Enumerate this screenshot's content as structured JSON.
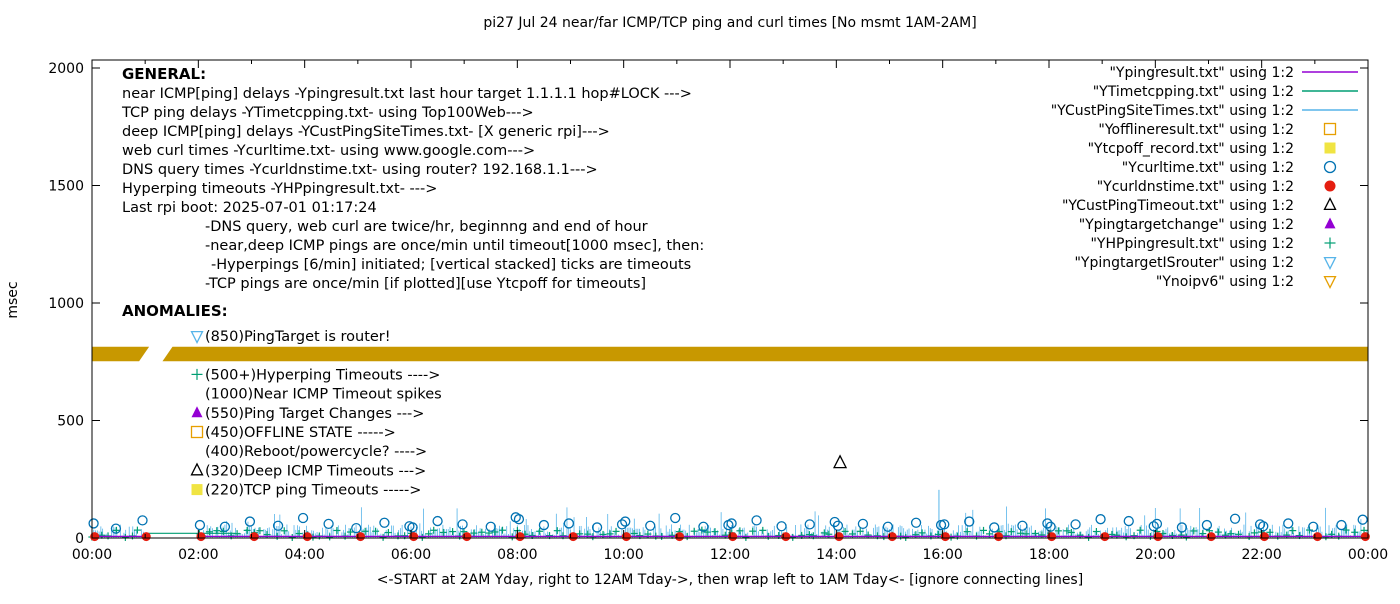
{
  "chart_data": {
    "type": "line",
    "title": "pi27 Jul 24  near/far ICMP/TCP ping and curl times [No msmt 1AM-2AM]",
    "ylabel": "msec",
    "xlabel": "<-START at 2AM Yday, right to 12AM Tday->, then wrap left to 1AM Tday<- [ignore connecting lines]",
    "ylim": [
      0,
      2000
    ],
    "xlim_hours": [
      0,
      24
    ],
    "y_ticks": [
      0,
      500,
      1000,
      1500,
      2000
    ],
    "x_ticks": [
      "00:00",
      "02:00",
      "04:00",
      "06:00",
      "08:00",
      "10:00",
      "12:00",
      "14:00",
      "16:00",
      "18:00",
      "20:00",
      "22:00",
      "00:00"
    ],
    "grid": false,
    "legend_position": "top-right-inside",
    "legend": [
      {
        "label": "\"Ypingresult.txt\" using 1:2",
        "marker": "line",
        "color": "#9400d3"
      },
      {
        "label": "\"YTimetcpping.txt\" using 1:2",
        "marker": "line",
        "color": "#009e73"
      },
      {
        "label": "\"YCustPingSiteTimes.txt\" using 1:2",
        "marker": "line",
        "color": "#56b4e9"
      },
      {
        "label": "\"Yofflineresult.txt\" using 1:2",
        "marker": "square-open",
        "color": "#e69f00"
      },
      {
        "label": "\"Ytcpoff_record.txt\" using 1:2",
        "marker": "square-filled",
        "color": "#f0e442"
      },
      {
        "label": "\"Ycurltime.txt\" using 1:2",
        "marker": "circle-open",
        "color": "#0072b2"
      },
      {
        "label": "\"Ycurldnstime.txt\" using 1:2",
        "marker": "circle-filled",
        "color": "#e51e10"
      },
      {
        "label": "\"YCustPingTimeout.txt\" using 1:2",
        "marker": "triangle-open",
        "color": "#000000"
      },
      {
        "label": "\"Ypingtargetchange\" using 1:2",
        "marker": "triangle-filled",
        "color": "#9400d3"
      },
      {
        "label": "\"YHPpingresult.txt\" using 1:2",
        "marker": "plus",
        "color": "#009e73"
      },
      {
        "label": "\"YpingtargetISrouter\" using 1:2",
        "marker": "triangle-down-open",
        "color": "#56b4e9"
      },
      {
        "label": "\"Ynoipv6\" using 1:2",
        "marker": "triangle-down-open",
        "color": "#e69f00"
      }
    ],
    "band": {
      "y_msec": 783,
      "height_msec": 62,
      "color": "#c89800",
      "gap_hours": [
        0.98,
        1.42
      ]
    },
    "series": [
      {
        "name": "deep-icmp-noise",
        "color": "#56b4e9",
        "style": "ticks",
        "seed": 11,
        "per_hour": 30,
        "ymin": 3,
        "ymax": 58,
        "spike_chance": 0.06,
        "spike_min": 60,
        "spike_max": 135,
        "gap_hours": [
          [
            1.0,
            2.0
          ]
        ],
        "extra_spikes": [
          [
            15.93,
            205
          ]
        ]
      },
      {
        "name": "hyperping-plus",
        "color": "#009e73",
        "style": "plus-points",
        "seed": 23,
        "per_hour": 7,
        "ymin": 2,
        "ymax": 34,
        "gap_hours": [
          [
            1.0,
            2.0
          ]
        ]
      },
      {
        "name": "near-icmp-line",
        "color": "#9400d3",
        "style": "flatline",
        "y": 7,
        "from": 0,
        "to": 24,
        "gap_hours": [
          [
            1.0,
            2.0
          ]
        ]
      },
      {
        "name": "tcp-bridge-line",
        "color": "#009e73",
        "style": "flatline",
        "y": 20,
        "from": 1.05,
        "to": 2.7,
        "gap_hours": []
      },
      {
        "name": "curl-times",
        "color": "#0072b2",
        "style": "circle-open-points",
        "points": [
          [
            0.03,
            62
          ],
          [
            0.45,
            40
          ],
          [
            0.95,
            75
          ],
          [
            2.03,
            55
          ],
          [
            2.5,
            48
          ],
          [
            2.97,
            70
          ],
          [
            3.5,
            52
          ],
          [
            3.97,
            85
          ],
          [
            4.45,
            60
          ],
          [
            4.97,
            42
          ],
          [
            5.5,
            65
          ],
          [
            5.97,
            50
          ],
          [
            6.03,
            45
          ],
          [
            6.5,
            72
          ],
          [
            6.97,
            58
          ],
          [
            7.5,
            48
          ],
          [
            7.97,
            88
          ],
          [
            8.03,
            80
          ],
          [
            8.5,
            55
          ],
          [
            8.97,
            62
          ],
          [
            9.5,
            45
          ],
          [
            9.97,
            58
          ],
          [
            10.03,
            70
          ],
          [
            10.5,
            52
          ],
          [
            10.97,
            85
          ],
          [
            11.5,
            48
          ],
          [
            11.97,
            55
          ],
          [
            12.03,
            62
          ],
          [
            12.5,
            75
          ],
          [
            12.97,
            50
          ],
          [
            13.5,
            58
          ],
          [
            13.97,
            68
          ],
          [
            14.03,
            52
          ],
          [
            14.5,
            60
          ],
          [
            14.97,
            48
          ],
          [
            15.5,
            65
          ],
          [
            15.97,
            55
          ],
          [
            16.03,
            58
          ],
          [
            16.5,
            70
          ],
          [
            16.97,
            45
          ],
          [
            17.5,
            52
          ],
          [
            17.97,
            62
          ],
          [
            18.03,
            48
          ],
          [
            18.5,
            58
          ],
          [
            18.97,
            80
          ],
          [
            19.5,
            72
          ],
          [
            19.97,
            50
          ],
          [
            20.03,
            60
          ],
          [
            20.5,
            45
          ],
          [
            20.97,
            55
          ],
          [
            21.5,
            82
          ],
          [
            21.97,
            58
          ],
          [
            22.03,
            50
          ],
          [
            22.5,
            62
          ],
          [
            22.97,
            48
          ],
          [
            23.5,
            55
          ],
          [
            23.9,
            78
          ]
        ]
      },
      {
        "name": "dns-times",
        "color": "#e51e10",
        "style": "circle-filled-points",
        "value": 6,
        "hours": [
          0.05,
          1.02,
          2.05,
          3.05,
          4.05,
          5.05,
          6.05,
          7.05,
          8.05,
          9.05,
          10.05,
          11.05,
          12.05,
          13.05,
          14.05,
          15.05,
          16.05,
          17.05,
          18.05,
          19.05,
          20.05,
          21.05,
          22.05,
          23.05,
          23.95
        ]
      },
      {
        "name": "deep-icmp-timeout",
        "color": "#000000",
        "style": "triangle-open-points",
        "points": [
          [
            14.07,
            320
          ]
        ]
      }
    ],
    "annotations": {
      "general": {
        "heading": "GENERAL:",
        "lines": [
          {
            "text": "near ICMP[ping] delays -Ypingresult.txt last hour target 1.1.1.1 hop#LOCK --->",
            "indent": 0
          },
          {
            "text": "TCP ping delays -YTimetcpping.txt- using Top100Web--->",
            "indent": 0
          },
          {
            "text": "deep ICMP[ping] delays -YCustPingSiteTimes.txt- [X generic rpi]--->",
            "indent": 0
          },
          {
            "text": "web curl times -Ycurltime.txt- using www.google.com--->",
            "indent": 0
          },
          {
            "text": "DNS query times -Ycurldnstime.txt- using router? 192.168.1.1--->",
            "indent": 0
          },
          {
            "text": "Hyperping timeouts -YHPpingresult.txt- --->",
            "indent": 0
          },
          {
            "text": "Last rpi boot: 2025-07-01 01:17:24",
            "indent": 0
          },
          {
            "text": "-DNS query, web curl are twice/hr, beginnng and end of hour",
            "indent": 1
          },
          {
            "text": "-near,deep ICMP pings are once/min until timeout[1000 msec], then:",
            "indent": 1
          },
          {
            "text": "-Hyperpings [6/min] initiated; [vertical stacked] ticks are timeouts",
            "indent": 2
          },
          {
            "text": "-TCP pings are once/min [if plotted][use Ytcpoff for timeouts]",
            "indent": 1
          }
        ]
      },
      "anomalies": {
        "heading": "ANOMALIES:",
        "items": [
          {
            "marker": "triangle-down-open",
            "color": "#56b4e9",
            "text": "(850)PingTarget is router!"
          },
          {
            "marker": null,
            "color": null,
            "text": ""
          },
          {
            "marker": "plus",
            "color": "#009e73",
            "text": "(500+)Hyperping Timeouts ---->"
          },
          {
            "marker": null,
            "color": null,
            "text": "(1000)Near ICMP Timeout spikes"
          },
          {
            "marker": "triangle-filled",
            "color": "#9400d3",
            "text": "(550)Ping Target Changes --->"
          },
          {
            "marker": "square-open",
            "color": "#e69f00",
            "text": "(450)OFFLINE STATE ----->"
          },
          {
            "marker": null,
            "color": null,
            "text": "(400)Reboot/powercycle? ---->"
          },
          {
            "marker": "triangle-open",
            "color": "#000000",
            "text": "(320)Deep ICMP Timeouts --->"
          },
          {
            "marker": "square-filled",
            "color": "#f0e442",
            "text": "(220)TCP ping Timeouts ----->"
          }
        ]
      }
    }
  }
}
